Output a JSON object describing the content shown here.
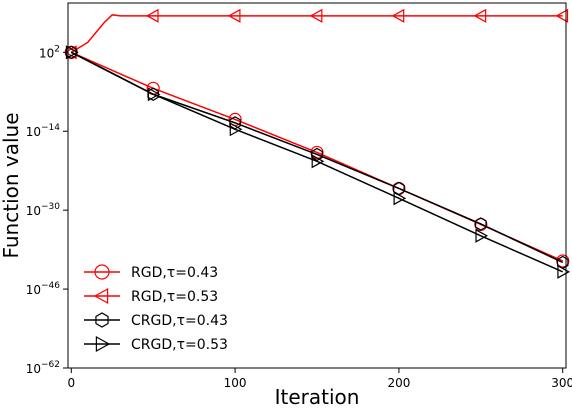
{
  "chart_data": {
    "type": "line",
    "title": "",
    "xlabel": "Iteration",
    "ylabel": "Function value",
    "yscale": "log",
    "xlim": [
      -2,
      302
    ],
    "ylim_exponent": [
      -62,
      12
    ],
    "xticks": [
      0,
      100,
      200,
      300
    ],
    "xtick_labels": [
      "0",
      "100",
      "200",
      "300"
    ],
    "yticks_exponent": [
      2,
      -14,
      -30,
      -46,
      -62
    ],
    "ytick_labels": [
      {
        "base": "10",
        "exp": "2"
      },
      {
        "base": "10",
        "exp": "−14"
      },
      {
        "base": "10",
        "exp": "−30"
      },
      {
        "base": "10",
        "exp": "−46"
      },
      {
        "base": "10",
        "exp": "−62"
      }
    ],
    "grid": false,
    "legend_position": "lower-left",
    "series": [
      {
        "name": "RGD,τ=0.43",
        "color": "#ff0000",
        "marker": "circle",
        "x": [
          0,
          50,
          100,
          150,
          200,
          250,
          300
        ],
        "log10_y": [
          2,
          -5.3,
          -11.6,
          -18.3,
          -25.6,
          -32.9,
          -40.3
        ]
      },
      {
        "name": "RGD,τ=0.53",
        "color": "#ff0000",
        "marker": "triangle-left",
        "x": [
          0,
          10,
          20,
          25,
          30,
          50,
          100,
          150,
          200,
          250,
          300
        ],
        "log10_y": [
          2,
          4,
          8,
          9.6,
          9.4,
          9.4,
          9.4,
          9.4,
          9.4,
          9.4,
          9.4
        ]
      },
      {
        "name": "CRGD,τ=0.43",
        "color": "#000000",
        "marker": "hexagon",
        "x": [
          0,
          50,
          100,
          150,
          200,
          250,
          300
        ],
        "log10_y": [
          2,
          -6.5,
          -12.3,
          -18.7,
          -25.6,
          -32.8,
          -40.6
        ]
      },
      {
        "name": "CRGD,τ=0.53",
        "color": "#000000",
        "marker": "triangle-right",
        "x": [
          0,
          50,
          100,
          150,
          200,
          250,
          300
        ],
        "log10_y": [
          2,
          -6.5,
          -13.6,
          -20.1,
          -27.6,
          -35.2,
          -42.5
        ]
      }
    ]
  }
}
